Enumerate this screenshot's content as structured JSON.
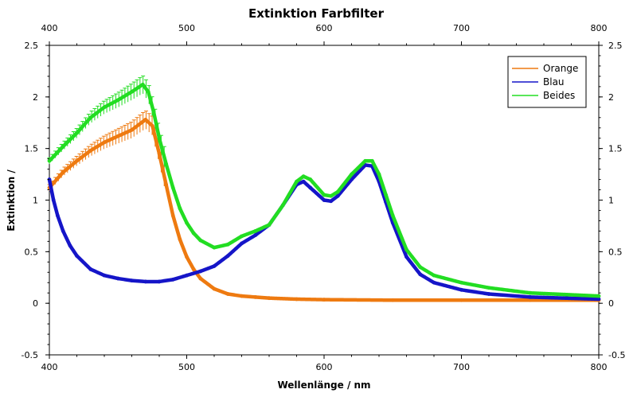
{
  "chart_data": {
    "type": "scatter",
    "title": "Extinktion Farbfilter",
    "xlabel": "Wellenlänge / nm",
    "ylabel": "Extinktion /",
    "xlim": [
      400,
      800
    ],
    "ylim": [
      -0.5,
      2.5
    ],
    "xticks": [
      "400",
      "500",
      "600",
      "700",
      "800"
    ],
    "yticks": [
      "-0.5",
      "0",
      "0.5",
      "1",
      "1.5",
      "2",
      "2.5"
    ],
    "grid": false,
    "legend_position": "top-right",
    "series": [
      {
        "name": "Orange",
        "color": "#ee7a10",
        "x": [
          400,
          410,
          420,
          430,
          440,
          450,
          460,
          470,
          475,
          480,
          485,
          490,
          495,
          500,
          505,
          510,
          520,
          530,
          540,
          550,
          560,
          580,
          600,
          650,
          700,
          750,
          800
        ],
        "y": [
          1.12,
          1.27,
          1.38,
          1.48,
          1.56,
          1.62,
          1.68,
          1.78,
          1.72,
          1.45,
          1.15,
          0.85,
          0.62,
          0.45,
          0.33,
          0.24,
          0.14,
          0.09,
          0.07,
          0.06,
          0.05,
          0.04,
          0.035,
          0.03,
          0.03,
          0.03,
          0.03
        ],
        "error_bars": true
      },
      {
        "name": "Blau",
        "color": "#1515c8",
        "x": [
          400,
          403,
          406,
          410,
          415,
          420,
          430,
          440,
          450,
          460,
          470,
          480,
          490,
          500,
          510,
          520,
          530,
          540,
          550,
          560,
          570,
          580,
          585,
          590,
          600,
          605,
          610,
          620,
          630,
          635,
          640,
          645,
          650,
          660,
          670,
          680,
          700,
          720,
          750,
          800
        ],
        "y": [
          1.2,
          1.0,
          0.85,
          0.7,
          0.56,
          0.46,
          0.33,
          0.27,
          0.24,
          0.22,
          0.21,
          0.21,
          0.23,
          0.27,
          0.31,
          0.36,
          0.46,
          0.58,
          0.66,
          0.76,
          0.95,
          1.15,
          1.18,
          1.12,
          1.0,
          0.99,
          1.04,
          1.2,
          1.34,
          1.33,
          1.18,
          0.98,
          0.78,
          0.45,
          0.28,
          0.2,
          0.13,
          0.09,
          0.06,
          0.04
        ]
      },
      {
        "name": "Beides",
        "color": "#22dd22",
        "x": [
          400,
          410,
          420,
          430,
          440,
          450,
          460,
          468,
          472,
          476,
          480,
          485,
          490,
          495,
          500,
          505,
          510,
          520,
          530,
          540,
          550,
          560,
          570,
          580,
          585,
          590,
          600,
          605,
          610,
          620,
          630,
          635,
          640,
          645,
          650,
          660,
          670,
          680,
          700,
          720,
          750,
          800
        ],
        "y": [
          1.38,
          1.52,
          1.65,
          1.8,
          1.9,
          1.97,
          2.05,
          2.12,
          2.05,
          1.85,
          1.6,
          1.35,
          1.12,
          0.92,
          0.78,
          0.68,
          0.61,
          0.54,
          0.57,
          0.65,
          0.7,
          0.76,
          0.95,
          1.18,
          1.23,
          1.2,
          1.05,
          1.04,
          1.08,
          1.25,
          1.38,
          1.38,
          1.25,
          1.05,
          0.85,
          0.52,
          0.35,
          0.27,
          0.2,
          0.15,
          0.1,
          0.07
        ],
        "error_bars": true
      }
    ]
  }
}
